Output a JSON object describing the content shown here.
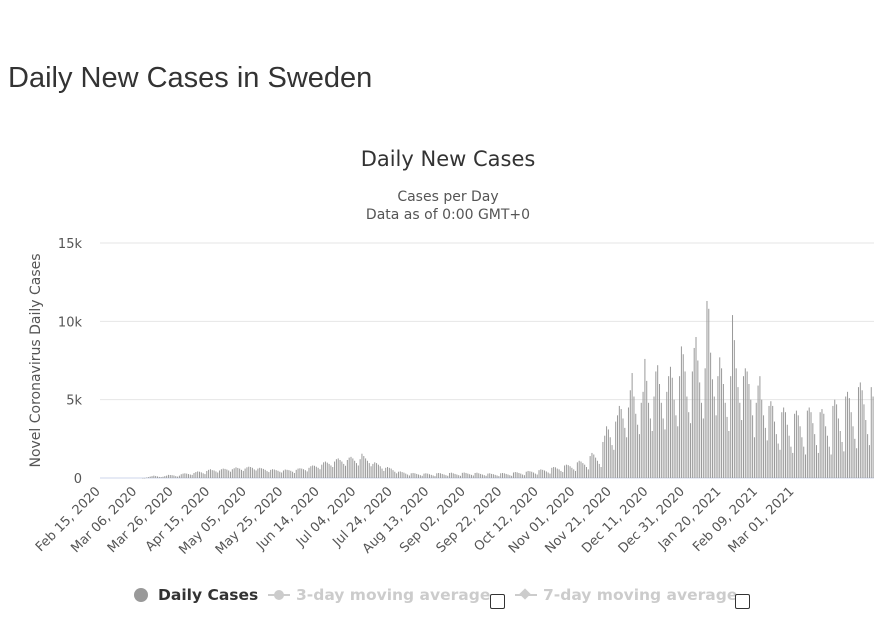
{
  "page": {
    "heading": "Daily New Cases in Sweden"
  },
  "colors": {
    "bar": "#999999",
    "grid": "#e6e6e6",
    "text": "#333333",
    "inactive": "#cccccc"
  },
  "legend": {
    "items": [
      {
        "label": "Daily Cases",
        "icon": "circle-dot-icon",
        "active": true
      },
      {
        "label": "3-day moving average",
        "icon": "line-circle-icon",
        "active": false
      },
      {
        "label": "7-day moving average",
        "icon": "line-diamond-icon",
        "active": false
      }
    ]
  },
  "chart_data": {
    "type": "bar",
    "title": "Daily New Cases",
    "subtitle_lines": [
      "Cases per Day",
      "Data as of 0:00 GMT+0"
    ],
    "ylabel": "Novel Coronavirus Daily Cases",
    "xlabel": "",
    "ylim": [
      0,
      15000
    ],
    "yticks": [
      0,
      5000,
      10000,
      15000
    ],
    "ytick_labels": [
      "0",
      "5k",
      "10k",
      "15k"
    ],
    "x_start": "Feb 15, 2020",
    "x_end": "Mar 08, 2021",
    "xtick_labels": [
      "Feb 15, 2020",
      "Mar 06, 2020",
      "Mar 26, 2020",
      "Apr 15, 2020",
      "May 05, 2020",
      "May 25, 2020",
      "Jun 14, 2020",
      "Jul 04, 2020",
      "Jul 24, 2020",
      "Aug 13, 2020",
      "Sep 02, 2020",
      "Sep 22, 2020",
      "Oct 12, 2020",
      "Nov 01, 2020",
      "Nov 21, 2020",
      "Dec 11, 2020",
      "Dec 31, 2020",
      "Jan 20, 2021",
      "Feb 09, 2021",
      "Mar 01, 2021"
    ],
    "series": [
      {
        "name": "Daily Cases",
        "values": [
          0,
          0,
          0,
          0,
          0,
          0,
          0,
          0,
          0,
          0,
          0,
          0,
          0,
          0,
          0,
          0,
          0,
          0,
          0,
          0,
          0,
          0,
          0,
          2,
          5,
          30,
          60,
          90,
          120,
          150,
          130,
          100,
          70,
          60,
          80,
          120,
          150,
          200,
          190,
          180,
          160,
          120,
          90,
          150,
          240,
          280,
          300,
          280,
          250,
          220,
          200,
          320,
          380,
          420,
          400,
          360,
          300,
          250,
          450,
          520,
          560,
          500,
          480,
          420,
          350,
          480,
          560,
          600,
          580,
          540,
          480,
          400,
          560,
          620,
          680,
          640,
          600,
          520,
          450,
          600,
          680,
          720,
          700,
          650,
          550,
          480,
          600,
          650,
          620,
          580,
          520,
          440,
          380,
          520,
          560,
          540,
          500,
          460,
          400,
          350,
          480,
          540,
          520,
          500,
          460,
          400,
          320,
          520,
          600,
          620,
          600,
          560,
          500,
          420,
          650,
          750,
          800,
          780,
          720,
          650,
          560,
          850,
          1000,
          1050,
          980,
          900,
          800,
          700,
          1050,
          1200,
          1250,
          1150,
          1050,
          900,
          780,
          1150,
          1300,
          1350,
          1250,
          1100,
          950,
          800,
          1200,
          1550,
          1400,
          1250,
          1100,
          950,
          750,
          900,
          1000,
          950,
          850,
          750,
          600,
          450,
          650,
          700,
          650,
          600,
          500,
          400,
          300,
          400,
          420,
          380,
          340,
          280,
          220,
          160,
          300,
          320,
          300,
          260,
          220,
          180,
          140,
          280,
          300,
          280,
          240,
          200,
          160,
          120,
          300,
          320,
          300,
          260,
          220,
          180,
          140,
          320,
          340,
          300,
          260,
          220,
          180,
          140,
          330,
          350,
          320,
          280,
          240,
          200,
          160,
          320,
          340,
          300,
          260,
          220,
          180,
          140,
          280,
          300,
          260,
          240,
          200,
          160,
          120,
          300,
          320,
          300,
          260,
          220,
          180,
          140,
          350,
          380,
          360,
          320,
          280,
          220,
          180,
          400,
          450,
          430,
          400,
          350,
          280,
          220,
          500,
          550,
          520,
          480,
          420,
          350,
          280,
          650,
          700,
          680,
          600,
          550,
          450,
          380,
          800,
          850,
          820,
          750,
          650,
          550,
          450,
          1000,
          1100,
          1050,
          950,
          850,
          700,
          550,
          1400,
          1600,
          1500,
          1300,
          1100,
          900,
          700,
          2300,
          2700,
          3300,
          3100,
          2600,
          2100,
          1800,
          3600,
          4000,
          4600,
          4400,
          3800,
          3200,
          2600,
          4500,
          5600,
          6700,
          5200,
          4100,
          3400,
          2800,
          4800,
          5500,
          7600,
          6200,
          4800,
          3800,
          3000,
          5200,
          6800,
          7200,
          6000,
          4800,
          3800,
          3100,
          5500,
          6500,
          7100,
          6400,
          5000,
          4000,
          3300,
          6500,
          8400,
          7900,
          6800,
          5200,
          4200,
          3500,
          6800,
          8300,
          9000,
          7500,
          6100,
          4800,
          3800,
          7000,
          11300,
          10800,
          8000,
          6300,
          5200,
          4000,
          6500,
          7700,
          7000,
          6000,
          4800,
          3900,
          3000,
          6500,
          10400,
          8800,
          7000,
          5800,
          4800,
          3700,
          6500,
          7000,
          6800,
          6000,
          5000,
          4000,
          2600,
          4800,
          5900,
          6500,
          5000,
          4000,
          3200,
          2400,
          4600,
          4900,
          4600,
          3600,
          2800,
          2200,
          1800,
          4200,
          4500,
          4200,
          3400,
          2700,
          2000,
          1600,
          4100,
          4300,
          4000,
          3300,
          2600,
          2000,
          1500,
          4300,
          4500,
          4200,
          3500,
          2800,
          2100,
          1600,
          4200,
          4400,
          4100,
          3300,
          2700,
          2000,
          1500,
          4600,
          5000,
          4700,
          3800,
          3000,
          2300,
          1700,
          5200,
          5500,
          5100,
          4200,
          3300,
          2500,
          1900,
          5800,
          6100,
          5600,
          4700,
          3700,
          2800,
          2100,
          5800,
          5200
        ]
      }
    ]
  }
}
